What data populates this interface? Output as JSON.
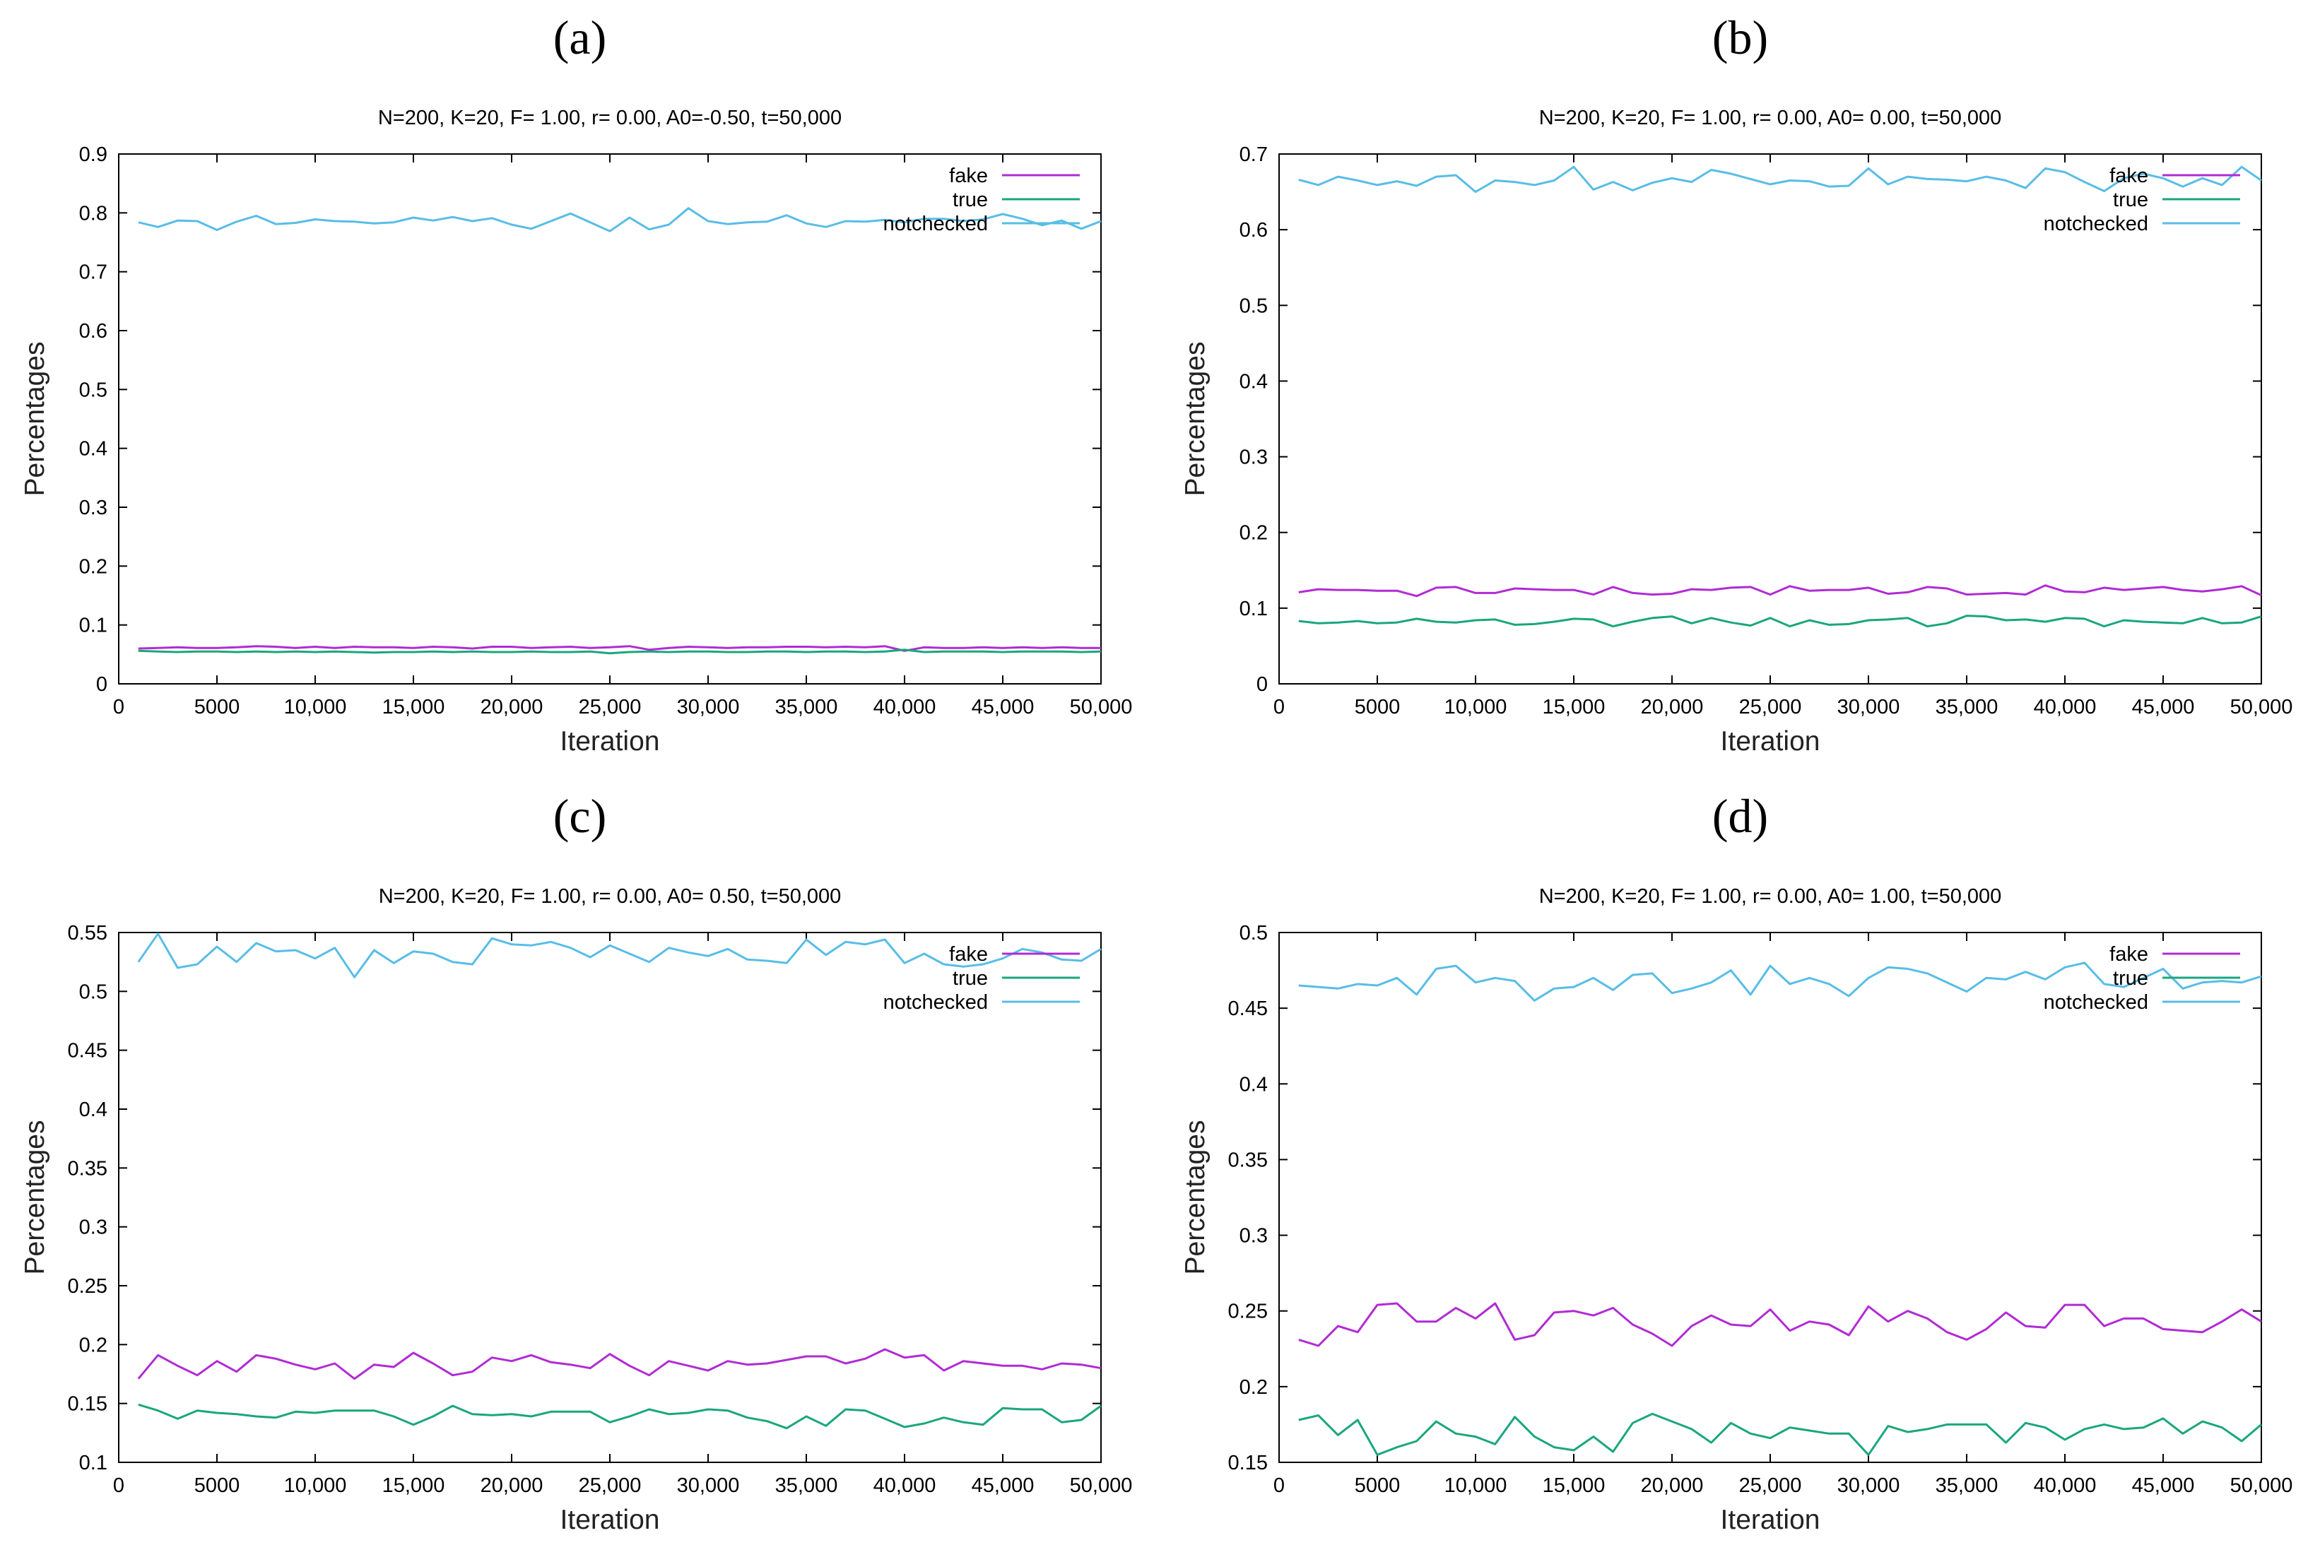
{
  "panels": [
    {
      "letter": "(a)"
    },
    {
      "letter": "(b)"
    },
    {
      "letter": "(c)"
    },
    {
      "letter": "(d)"
    }
  ],
  "colors": {
    "fake": "#b12bd4",
    "true": "#1aa67e",
    "notchecked": "#58bde6"
  },
  "chart_data": [
    {
      "type": "line",
      "title": "N=200, K=20, F= 1.00, r= 0.00, A0=-0.50, t=50,000",
      "xlabel": "Iteration",
      "ylabel": "Percentages",
      "xlim": [
        0,
        50000
      ],
      "ylim": [
        0,
        0.9
      ],
      "xticks": [
        0,
        5000,
        10000,
        15000,
        20000,
        25000,
        30000,
        35000,
        40000,
        45000,
        50000
      ],
      "xtick_labels": [
        "0",
        "5000",
        "10,000",
        "15,000",
        "20,000",
        "25,000",
        "30,000",
        "35,000",
        "40,000",
        "45,000",
        "50,000"
      ],
      "yticks": [
        0,
        0.1,
        0.2,
        0.3,
        0.4,
        0.5,
        0.6,
        0.7,
        0.8,
        0.9
      ],
      "ytick_labels": [
        "0",
        "0.1",
        "0.2",
        "0.3",
        "0.4",
        "0.5",
        "0.6",
        "0.7",
        "0.8",
        "0.9"
      ],
      "legend_position": "top-right",
      "grid": false,
      "x": [
        1000,
        2000,
        3000,
        4000,
        5000,
        6000,
        7000,
        8000,
        9000,
        10000,
        11000,
        12000,
        13000,
        14000,
        15000,
        16000,
        17000,
        18000,
        19000,
        20000,
        21000,
        22000,
        23000,
        24000,
        25000,
        26000,
        27000,
        28000,
        29000,
        30000,
        31000,
        32000,
        33000,
        34000,
        35000,
        36000,
        37000,
        38000,
        39000,
        40000,
        41000,
        42000,
        43000,
        44000,
        45000,
        46000,
        47000,
        48000,
        49000,
        50000
      ],
      "series": [
        {
          "name": "fake",
          "values": [
            0.06,
            0.061,
            0.062,
            0.061,
            0.061,
            0.062,
            0.064,
            0.063,
            0.061,
            0.063,
            0.061,
            0.063,
            0.062,
            0.062,
            0.061,
            0.063,
            0.062,
            0.06,
            0.063,
            0.063,
            0.061,
            0.062,
            0.063,
            0.061,
            0.062,
            0.064,
            0.058,
            0.061,
            0.063,
            0.062,
            0.061,
            0.062,
            0.062,
            0.063,
            0.063,
            0.062,
            0.063,
            0.062,
            0.064,
            0.056,
            0.062,
            0.061,
            0.061,
            0.062,
            0.061,
            0.062,
            0.061,
            0.062,
            0.061,
            0.061
          ]
        },
        {
          "name": "true",
          "values": [
            0.056,
            0.055,
            0.054,
            0.055,
            0.055,
            0.054,
            0.055,
            0.054,
            0.055,
            0.054,
            0.055,
            0.054,
            0.053,
            0.054,
            0.054,
            0.055,
            0.054,
            0.055,
            0.054,
            0.054,
            0.055,
            0.054,
            0.054,
            0.055,
            0.052,
            0.054,
            0.055,
            0.054,
            0.055,
            0.055,
            0.054,
            0.054,
            0.055,
            0.055,
            0.054,
            0.055,
            0.055,
            0.054,
            0.055,
            0.058,
            0.054,
            0.055,
            0.055,
            0.055,
            0.054,
            0.055,
            0.055,
            0.055,
            0.054,
            0.055
          ]
        },
        {
          "name": "notchecked",
          "values": [
            0.784,
            0.776,
            0.787,
            0.786,
            0.771,
            0.785,
            0.795,
            0.781,
            0.783,
            0.789,
            0.786,
            0.785,
            0.782,
            0.784,
            0.792,
            0.787,
            0.793,
            0.786,
            0.791,
            0.78,
            0.773,
            0.786,
            0.799,
            0.784,
            0.769,
            0.792,
            0.772,
            0.78,
            0.808,
            0.786,
            0.781,
            0.784,
            0.785,
            0.796,
            0.782,
            0.776,
            0.786,
            0.785,
            0.788,
            0.784,
            0.79,
            0.79,
            0.786,
            0.789,
            0.798,
            0.79,
            0.779,
            0.787,
            0.773,
            0.786
          ]
        }
      ]
    },
    {
      "type": "line",
      "title": "N=200, K=20, F= 1.00, r= 0.00, A0= 0.00, t=50,000",
      "xlabel": "Iteration",
      "ylabel": "Percentages",
      "xlim": [
        0,
        50000
      ],
      "ylim": [
        0,
        0.7
      ],
      "xticks": [
        0,
        5000,
        10000,
        15000,
        20000,
        25000,
        30000,
        35000,
        40000,
        45000,
        50000
      ],
      "xtick_labels": [
        "0",
        "5000",
        "10,000",
        "15,000",
        "20,000",
        "25,000",
        "30,000",
        "35,000",
        "40,000",
        "45,000",
        "50,000"
      ],
      "yticks": [
        0,
        0.1,
        0.2,
        0.3,
        0.4,
        0.5,
        0.6,
        0.7
      ],
      "ytick_labels": [
        "0",
        "0.1",
        "0.2",
        "0.3",
        "0.4",
        "0.5",
        "0.6",
        "0.7"
      ],
      "legend_position": "top-right",
      "grid": false,
      "x": [
        1000,
        2000,
        3000,
        4000,
        5000,
        6000,
        7000,
        8000,
        9000,
        10000,
        11000,
        12000,
        13000,
        14000,
        15000,
        16000,
        17000,
        18000,
        19000,
        20000,
        21000,
        22000,
        23000,
        24000,
        25000,
        26000,
        27000,
        28000,
        29000,
        30000,
        31000,
        32000,
        33000,
        34000,
        35000,
        36000,
        37000,
        38000,
        39000,
        40000,
        41000,
        42000,
        43000,
        44000,
        45000,
        46000,
        47000,
        48000,
        49000,
        50000
      ],
      "series": [
        {
          "name": "fake",
          "values": [
            0.121,
            0.125,
            0.124,
            0.124,
            0.123,
            0.123,
            0.116,
            0.127,
            0.128,
            0.12,
            0.12,
            0.126,
            0.125,
            0.124,
            0.124,
            0.118,
            0.128,
            0.12,
            0.118,
            0.119,
            0.125,
            0.124,
            0.127,
            0.128,
            0.118,
            0.129,
            0.123,
            0.124,
            0.124,
            0.127,
            0.119,
            0.121,
            0.128,
            0.126,
            0.118,
            0.119,
            0.12,
            0.118,
            0.13,
            0.122,
            0.121,
            0.127,
            0.124,
            0.126,
            0.128,
            0.124,
            0.122,
            0.125,
            0.129,
            0.117
          ]
        },
        {
          "name": "true",
          "values": [
            0.083,
            0.08,
            0.081,
            0.083,
            0.08,
            0.081,
            0.086,
            0.082,
            0.081,
            0.084,
            0.085,
            0.078,
            0.079,
            0.082,
            0.086,
            0.085,
            0.076,
            0.082,
            0.087,
            0.089,
            0.08,
            0.087,
            0.081,
            0.077,
            0.087,
            0.076,
            0.084,
            0.078,
            0.079,
            0.084,
            0.085,
            0.087,
            0.076,
            0.08,
            0.09,
            0.089,
            0.084,
            0.085,
            0.082,
            0.087,
            0.086,
            0.076,
            0.084,
            0.082,
            0.081,
            0.08,
            0.087,
            0.08,
            0.081,
            0.089
          ]
        },
        {
          "name": "notchecked",
          "values": [
            0.666,
            0.659,
            0.67,
            0.665,
            0.659,
            0.664,
            0.658,
            0.67,
            0.672,
            0.65,
            0.665,
            0.663,
            0.659,
            0.665,
            0.683,
            0.653,
            0.663,
            0.652,
            0.662,
            0.668,
            0.663,
            0.679,
            0.674,
            0.667,
            0.66,
            0.665,
            0.664,
            0.657,
            0.658,
            0.681,
            0.66,
            0.67,
            0.667,
            0.666,
            0.664,
            0.67,
            0.665,
            0.655,
            0.681,
            0.676,
            0.663,
            0.651,
            0.668,
            0.674,
            0.668,
            0.657,
            0.668,
            0.659,
            0.683,
            0.665
          ]
        }
      ]
    },
    {
      "type": "line",
      "title": "N=200, K=20, F= 1.00, r= 0.00, A0= 0.50, t=50,000",
      "xlabel": "Iteration",
      "ylabel": "Percentages",
      "xlim": [
        0,
        50000
      ],
      "ylim": [
        0.1,
        0.55
      ],
      "xticks": [
        0,
        5000,
        10000,
        15000,
        20000,
        25000,
        30000,
        35000,
        40000,
        45000,
        50000
      ],
      "xtick_labels": [
        "0",
        "5000",
        "10,000",
        "15,000",
        "20,000",
        "25,000",
        "30,000",
        "35,000",
        "40,000",
        "45,000",
        "50,000"
      ],
      "yticks": [
        0.1,
        0.15,
        0.2,
        0.25,
        0.3,
        0.35,
        0.4,
        0.45,
        0.5,
        0.55
      ],
      "ytick_labels": [
        "0.1",
        "0.15",
        "0.2",
        "0.25",
        "0.3",
        "0.35",
        "0.4",
        "0.45",
        "0.5",
        "0.55"
      ],
      "legend_position": "top-right",
      "grid": false,
      "x": [
        1000,
        2000,
        3000,
        4000,
        5000,
        6000,
        7000,
        8000,
        9000,
        10000,
        11000,
        12000,
        13000,
        14000,
        15000,
        16000,
        17000,
        18000,
        19000,
        20000,
        21000,
        22000,
        23000,
        24000,
        25000,
        26000,
        27000,
        28000,
        29000,
        30000,
        31000,
        32000,
        33000,
        34000,
        35000,
        36000,
        37000,
        38000,
        39000,
        40000,
        41000,
        42000,
        43000,
        44000,
        45000,
        46000,
        47000,
        48000,
        49000,
        50000
      ],
      "series": [
        {
          "name": "fake",
          "values": [
            0.171,
            0.191,
            0.182,
            0.174,
            0.186,
            0.177,
            0.191,
            0.188,
            0.183,
            0.179,
            0.184,
            0.171,
            0.183,
            0.181,
            0.193,
            0.184,
            0.174,
            0.177,
            0.189,
            0.186,
            0.191,
            0.185,
            0.183,
            0.18,
            0.192,
            0.182,
            0.174,
            0.186,
            0.182,
            0.178,
            0.186,
            0.183,
            0.184,
            0.187,
            0.19,
            0.19,
            0.184,
            0.188,
            0.196,
            0.189,
            0.191,
            0.178,
            0.186,
            0.184,
            0.182,
            0.182,
            0.179,
            0.184,
            0.183,
            0.18
          ]
        },
        {
          "name": "true",
          "values": [
            0.149,
            0.144,
            0.137,
            0.144,
            0.142,
            0.141,
            0.139,
            0.138,
            0.143,
            0.142,
            0.144,
            0.144,
            0.144,
            0.139,
            0.132,
            0.139,
            0.148,
            0.141,
            0.14,
            0.141,
            0.139,
            0.143,
            0.143,
            0.143,
            0.134,
            0.139,
            0.145,
            0.141,
            0.142,
            0.145,
            0.144,
            0.138,
            0.135,
            0.129,
            0.139,
            0.131,
            0.145,
            0.144,
            0.137,
            0.13,
            0.133,
            0.138,
            0.134,
            0.132,
            0.146,
            0.145,
            0.145,
            0.134,
            0.136,
            0.148
          ]
        },
        {
          "name": "notchecked",
          "values": [
            0.525,
            0.549,
            0.52,
            0.523,
            0.538,
            0.525,
            0.541,
            0.534,
            0.535,
            0.528,
            0.537,
            0.512,
            0.535,
            0.524,
            0.534,
            0.532,
            0.525,
            0.523,
            0.545,
            0.54,
            0.539,
            0.542,
            0.537,
            0.529,
            0.539,
            0.532,
            0.525,
            0.537,
            0.533,
            0.53,
            0.536,
            0.527,
            0.526,
            0.524,
            0.544,
            0.531,
            0.542,
            0.54,
            0.544,
            0.524,
            0.532,
            0.523,
            0.521,
            0.523,
            0.528,
            0.536,
            0.533,
            0.527,
            0.526,
            0.536
          ]
        }
      ]
    },
    {
      "type": "line",
      "title": "N=200, K=20, F= 1.00, r= 0.00, A0= 1.00, t=50,000",
      "xlabel": "Iteration",
      "ylabel": "Percentages",
      "xlim": [
        0,
        50000
      ],
      "ylim": [
        0.15,
        0.5
      ],
      "xticks": [
        0,
        5000,
        10000,
        15000,
        20000,
        25000,
        30000,
        35000,
        40000,
        45000,
        50000
      ],
      "xtick_labels": [
        "0",
        "5000",
        "10,000",
        "15,000",
        "20,000",
        "25,000",
        "30,000",
        "35,000",
        "40,000",
        "45,000",
        "50,000"
      ],
      "yticks": [
        0.15,
        0.2,
        0.25,
        0.3,
        0.35,
        0.4,
        0.45,
        0.5
      ],
      "ytick_labels": [
        "0.15",
        "0.2",
        "0.25",
        "0.3",
        "0.35",
        "0.4",
        "0.45",
        "0.5"
      ],
      "legend_position": "top-right",
      "grid": false,
      "x": [
        1000,
        2000,
        3000,
        4000,
        5000,
        6000,
        7000,
        8000,
        9000,
        10000,
        11000,
        12000,
        13000,
        14000,
        15000,
        16000,
        17000,
        18000,
        19000,
        20000,
        21000,
        22000,
        23000,
        24000,
        25000,
        26000,
        27000,
        28000,
        29000,
        30000,
        31000,
        32000,
        33000,
        34000,
        35000,
        36000,
        37000,
        38000,
        39000,
        40000,
        41000,
        42000,
        43000,
        44000,
        45000,
        46000,
        47000,
        48000,
        49000,
        50000
      ],
      "series": [
        {
          "name": "fake",
          "values": [
            0.231,
            0.227,
            0.24,
            0.236,
            0.254,
            0.255,
            0.243,
            0.243,
            0.252,
            0.245,
            0.255,
            0.231,
            0.234,
            0.249,
            0.25,
            0.247,
            0.252,
            0.241,
            0.235,
            0.227,
            0.24,
            0.247,
            0.241,
            0.24,
            0.251,
            0.237,
            0.243,
            0.241,
            0.234,
            0.253,
            0.243,
            0.25,
            0.245,
            0.236,
            0.231,
            0.238,
            0.249,
            0.24,
            0.239,
            0.254,
            0.254,
            0.24,
            0.245,
            0.245,
            0.238,
            0.237,
            0.236,
            0.243,
            0.251,
            0.243
          ]
        },
        {
          "name": "true",
          "values": [
            0.178,
            0.181,
            0.168,
            0.178,
            0.155,
            0.16,
            0.164,
            0.177,
            0.169,
            0.167,
            0.162,
            0.18,
            0.167,
            0.16,
            0.158,
            0.167,
            0.157,
            0.176,
            0.182,
            0.177,
            0.172,
            0.163,
            0.176,
            0.169,
            0.166,
            0.173,
            0.171,
            0.169,
            0.169,
            0.155,
            0.174,
            0.17,
            0.172,
            0.175,
            0.175,
            0.175,
            0.163,
            0.176,
            0.173,
            0.165,
            0.172,
            0.175,
            0.172,
            0.173,
            0.179,
            0.169,
            0.177,
            0.173,
            0.164,
            0.175
          ]
        },
        {
          "name": "notchecked",
          "values": [
            0.465,
            0.464,
            0.463,
            0.466,
            0.465,
            0.47,
            0.459,
            0.476,
            0.478,
            0.467,
            0.47,
            0.468,
            0.455,
            0.463,
            0.464,
            0.47,
            0.462,
            0.472,
            0.473,
            0.46,
            0.463,
            0.467,
            0.475,
            0.459,
            0.478,
            0.466,
            0.47,
            0.466,
            0.458,
            0.47,
            0.477,
            0.476,
            0.473,
            0.467,
            0.461,
            0.47,
            0.469,
            0.474,
            0.469,
            0.477,
            0.48,
            0.466,
            0.464,
            0.47,
            0.476,
            0.463,
            0.467,
            0.468,
            0.467,
            0.471
          ]
        }
      ]
    }
  ]
}
